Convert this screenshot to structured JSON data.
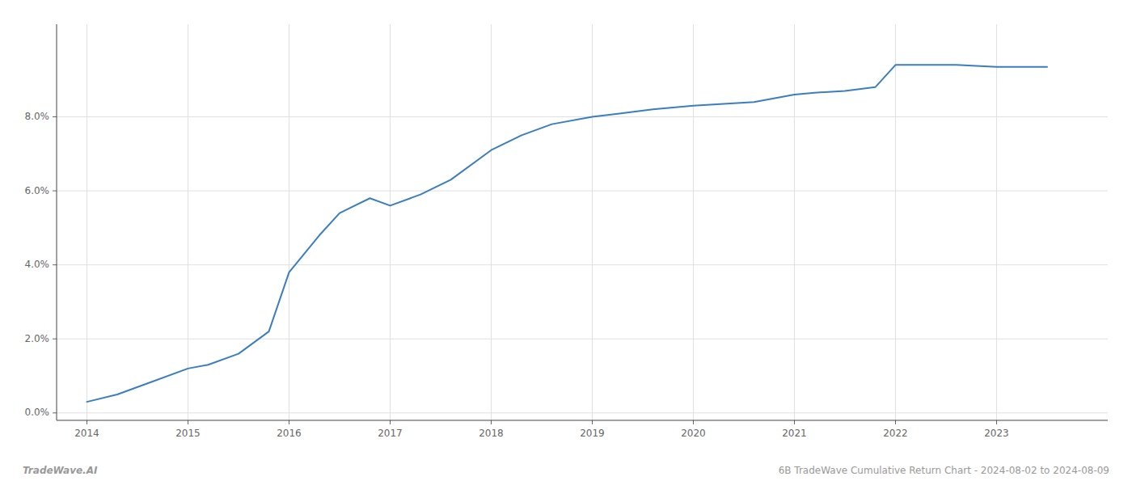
{
  "chart_data": {
    "type": "line",
    "x": [
      2014.0,
      2014.3,
      2014.6,
      2015.0,
      2015.2,
      2015.5,
      2015.8,
      2016.0,
      2016.3,
      2016.5,
      2016.8,
      2017.0,
      2017.3,
      2017.6,
      2018.0,
      2018.3,
      2018.6,
      2019.0,
      2019.3,
      2019.6,
      2020.0,
      2020.3,
      2020.6,
      2021.0,
      2021.2,
      2021.5,
      2021.8,
      2022.0,
      2022.3,
      2022.6,
      2023.0,
      2023.5
    ],
    "values": [
      0.003,
      0.005,
      0.008,
      0.012,
      0.013,
      0.016,
      0.022,
      0.038,
      0.048,
      0.054,
      0.058,
      0.056,
      0.059,
      0.063,
      0.071,
      0.075,
      0.078,
      0.08,
      0.081,
      0.082,
      0.083,
      0.0835,
      0.084,
      0.086,
      0.0865,
      0.087,
      0.088,
      0.094,
      0.094,
      0.094,
      0.0935,
      0.0935
    ],
    "color": "#3a7ebf",
    "xlim": [
      2013.7,
      2024.1
    ],
    "ylim": [
      -0.002,
      0.105
    ],
    "xticks": [
      2014,
      2015,
      2016,
      2017,
      2018,
      2019,
      2020,
      2021,
      2022,
      2023
    ],
    "yticks": [
      {
        "value": 0.0,
        "label": "0.0%"
      },
      {
        "value": 0.02,
        "label": "2.0%"
      },
      {
        "value": 0.04,
        "label": "4.0%"
      },
      {
        "value": 0.06,
        "label": "6.0%"
      },
      {
        "value": 0.08,
        "label": "8.0%"
      }
    ],
    "grid": true,
    "annotations": [
      "TradeWave.AI",
      "6B TradeWave Cumulative Return Chart - 2024-08-02 to 2024-08-09"
    ]
  }
}
